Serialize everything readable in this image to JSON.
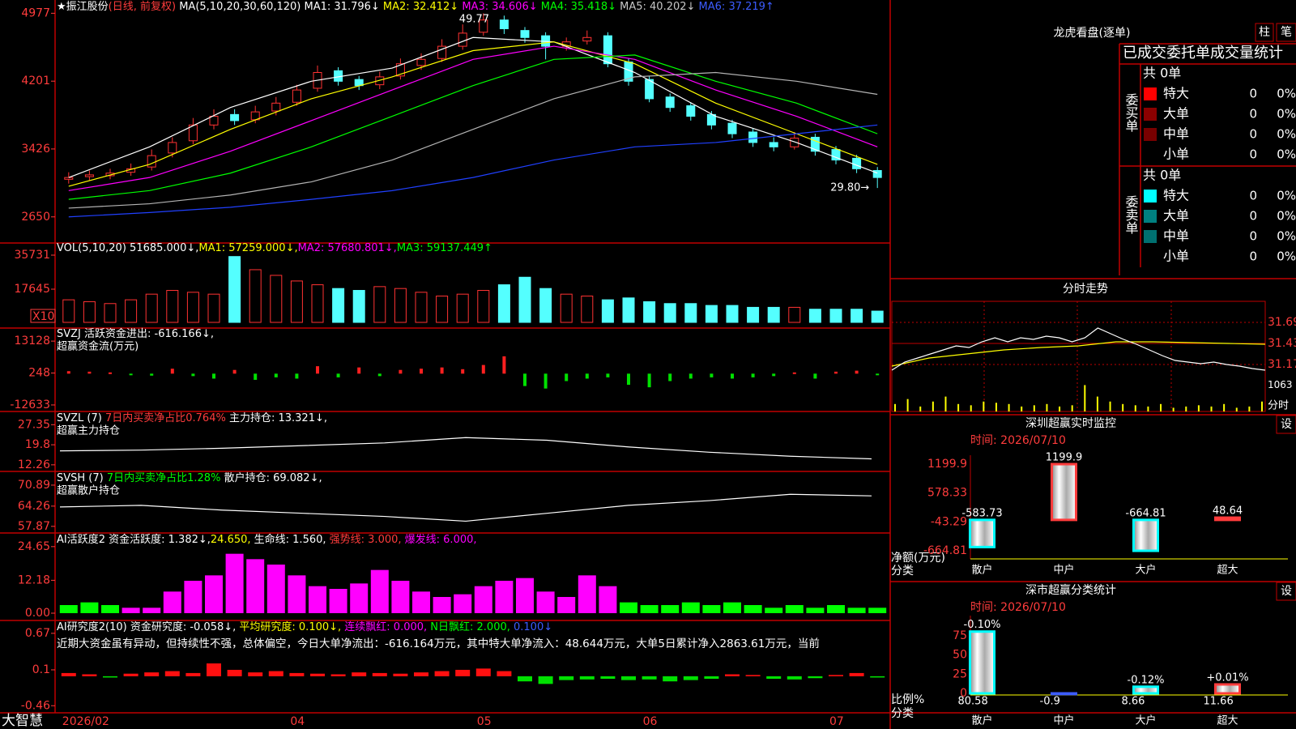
{
  "main": {
    "header": [
      {
        "text": "★振江股份",
        "color": "#ffffff"
      },
      {
        "text": "(日线, 前复权)",
        "color": "#ff3c3c"
      },
      {
        "text": " MA(5,10,20,30,60,120)",
        "color": "#ffffff"
      },
      {
        "text": " MA1: 31.796↓",
        "color": "#ffffff"
      },
      {
        "text": " MA2: 32.412↓",
        "color": "#ffff00"
      },
      {
        "text": " MA3: 34.606↓",
        "color": "#ff00ff"
      },
      {
        "text": " MA4: 35.418↓",
        "color": "#00ff00"
      },
      {
        "text": " MA5: 40.202↓",
        "color": "#c8c8c8"
      },
      {
        "text": " MA6: 37.219↑",
        "color": "#3c5cff"
      }
    ],
    "ylim": [
      2370,
      5110
    ],
    "yticks": [
      4977,
      4201,
      3426,
      2650
    ],
    "high_label": "49.77",
    "low_label": "29.80→",
    "categories": [
      "2026/02",
      null,
      null,
      null,
      null,
      null,
      null,
      null,
      null,
      null,
      null,
      "04",
      null,
      null,
      null,
      null,
      null,
      null,
      null,
      null,
      "05",
      null,
      null,
      null,
      null,
      null,
      null,
      null,
      "06",
      null,
      null,
      null,
      null,
      null,
      null,
      null,
      null,
      "07",
      null,
      null
    ],
    "open": [
      3080,
      3110,
      3120,
      3160,
      3220,
      3380,
      3520,
      3700,
      3820,
      3760,
      3860,
      3960,
      4120,
      4320,
      4220,
      4160,
      4260,
      4380,
      4460,
      4600,
      4760,
      4900,
      4780,
      4720,
      4600,
      4660,
      4720,
      4420,
      4220,
      4020,
      3920,
      3820,
      3720,
      3620,
      3500,
      3450,
      3560,
      3420,
      3320,
      3180
    ],
    "high": [
      3160,
      3180,
      3200,
      3260,
      3420,
      3560,
      3780,
      3880,
      3880,
      3920,
      4020,
      4160,
      4380,
      4360,
      4260,
      4310,
      4460,
      4520,
      4680,
      4850,
      4977,
      4950,
      4820,
      4760,
      4700,
      4780,
      4760,
      4460,
      4260,
      4060,
      3960,
      3860,
      3760,
      3660,
      3560,
      3620,
      3600,
      3460,
      3360,
      3220
    ],
    "low": [
      3030,
      3070,
      3080,
      3120,
      3180,
      3330,
      3480,
      3650,
      3700,
      3720,
      3810,
      3920,
      4080,
      4150,
      4100,
      4110,
      4220,
      4330,
      4420,
      4560,
      4720,
      4740,
      4640,
      4450,
      4550,
      4620,
      4360,
      4150,
      3960,
      3850,
      3750,
      3650,
      3550,
      3450,
      3400,
      3420,
      3350,
      3250,
      3150,
      2980
    ],
    "close": [
      3100,
      3130,
      3150,
      3200,
      3350,
      3500,
      3700,
      3800,
      3750,
      3850,
      3950,
      4100,
      4300,
      4200,
      4150,
      4250,
      4400,
      4450,
      4600,
      4750,
      4900,
      4800,
      4700,
      4600,
      4650,
      4700,
      4400,
      4200,
      4000,
      3900,
      3800,
      3700,
      3600,
      3500,
      3450,
      3550,
      3400,
      3300,
      3200,
      3100
    ],
    "ma_lines": [
      {
        "color": "#ffffff",
        "values": [
          3100,
          3450,
          3900,
          4200,
          4350,
          4700,
          4650,
          4300,
          3800,
          3500,
          3150
        ]
      },
      {
        "color": "#ffff00",
        "values": [
          3000,
          3250,
          3650,
          4000,
          4250,
          4550,
          4650,
          4400,
          3950,
          3600,
          3250
        ]
      },
      {
        "color": "#ff00ff",
        "values": [
          2950,
          3100,
          3400,
          3750,
          4100,
          4450,
          4600,
          4450,
          4100,
          3800,
          3450
        ]
      },
      {
        "color": "#00ff00",
        "values": [
          2850,
          2950,
          3150,
          3450,
          3800,
          4150,
          4450,
          4500,
          4200,
          3950,
          3600
        ]
      },
      {
        "color": "#b4b4b4",
        "values": [
          2750,
          2800,
          2900,
          3050,
          3300,
          3650,
          4000,
          4250,
          4300,
          4200,
          4050
        ]
      },
      {
        "color": "#2040ff",
        "values": [
          2650,
          2700,
          2760,
          2850,
          2950,
          3100,
          3300,
          3450,
          3500,
          3600,
          3700
        ]
      }
    ]
  },
  "vol": {
    "header": [
      {
        "text": "VOL(5,10,20) ",
        "color": "#ffffff"
      },
      {
        "text": "51685.000↓,",
        "color": "#ffffff"
      },
      {
        "text": "MA1: 57259.000↓,",
        "color": "#ffff00"
      },
      {
        "text": "MA2: 57680.801↓,",
        "color": "#ff00ff"
      },
      {
        "text": "MA3: 59137.449↑",
        "color": "#00ff00"
      }
    ],
    "unit": "X10",
    "ylim": [
      0,
      41330
    ],
    "yticks": [
      35731,
      17645
    ],
    "values": [
      12000,
      11000,
      10000,
      12000,
      15000,
      17000,
      16000,
      15000,
      35000,
      28000,
      25000,
      22000,
      20000,
      18000,
      17000,
      19000,
      18000,
      16000,
      14000,
      15000,
      17000,
      20000,
      24000,
      18000,
      15000,
      14000,
      12000,
      13000,
      11000,
      10000,
      10000,
      9000,
      9000,
      8000,
      8000,
      8000,
      7000,
      7000,
      7000,
      6000
    ]
  },
  "svzj": {
    "header": [
      {
        "text": "SVZJ  活跃资金进出: -616.166↓,",
        "color": "#ffffff"
      }
    ],
    "subtitle": "超赢资金流(万元)",
    "ylim": [
      -14283,
      17418
    ],
    "yticks": [
      13128,
      248,
      -12633
    ],
    "values": [
      1000,
      800,
      500,
      -500,
      -800,
      2000,
      -1000,
      -2000,
      1500,
      -2500,
      -1500,
      -2000,
      3000,
      -1500,
      2500,
      -1000,
      1500,
      2000,
      2500,
      1800,
      3500,
      7000,
      -5000,
      -6000,
      -3000,
      -2000,
      -1500,
      -4500,
      -5500,
      -3000,
      -2000,
      -1500,
      -2000,
      -1500,
      -1000,
      500,
      -2000,
      800,
      1200,
      -500
    ]
  },
  "svzl": {
    "header": [
      {
        "text": "SVZL (7) ",
        "color": "#ffffff"
      },
      {
        "text": "7日内买卖净占比0.764%",
        "color": "#ff3c3c"
      },
      {
        "text": " 主力持仓: 13.321↓,",
        "color": "#ffffff"
      }
    ],
    "subtitle": "超赢主力持仓",
    "ylim": [
      11.0,
      31.1
    ],
    "yticks": [
      27.35,
      19.8,
      12.26
    ],
    "values": [
      17.5,
      17.8,
      18.5,
      19.5,
      20.5,
      22.5,
      21.5,
      19,
      17,
      15.5,
      14.5
    ]
  },
  "svsh": {
    "header": [
      {
        "text": "SVSH (7) ",
        "color": "#ffffff"
      },
      {
        "text": "7日内买卖净占比1.28%",
        "color": "#00ff00"
      },
      {
        "text": " 散户持仓: 69.082↓,",
        "color": "#ffffff"
      }
    ],
    "subtitle": "超赢散户持仓",
    "ylim": [
      56.8,
      74.2
    ],
    "yticks": [
      70.89,
      64.26,
      57.87
    ],
    "values": [
      64,
      64.5,
      63,
      62,
      61,
      59.5,
      62,
      64.5,
      66,
      68,
      67.5
    ]
  },
  "active": {
    "header": [
      {
        "text": "AI活跃度2 资金活跃度: 1.382↓,",
        "color": "#ffffff"
      },
      {
        "text": "24.650,",
        "color": "#ffff00"
      },
      {
        "text": " 生命线: 1.560,",
        "color": "#ffffff"
      },
      {
        "text": " 强势线: 3.000,",
        "color": "#ff3c3c"
      },
      {
        "text": " 爆发线: 6.000,",
        "color": "#ff00ff"
      }
    ],
    "ylim": [
      0,
      28.5
    ],
    "yticks": [
      24.65,
      12.18,
      {
        "value": 0,
        "label": "0.00"
      }
    ],
    "values": [
      3,
      4,
      3,
      2,
      2,
      8,
      12,
      14,
      22,
      20,
      18,
      14,
      10,
      9,
      11,
      16,
      12,
      8,
      6,
      7,
      10,
      12,
      13,
      8,
      6,
      14,
      10,
      4,
      3,
      3,
      4,
      3,
      4,
      3,
      2,
      3,
      2,
      3,
      2,
      2
    ],
    "colors": [
      "#00ff00",
      "#00ff00",
      "#00ff00",
      "#ff00ff",
      "#ff00ff",
      "#ff00ff",
      "#ff00ff",
      "#ff00ff",
      "#ff00ff",
      "#ff00ff",
      "#ff00ff",
      "#ff00ff",
      "#ff00ff",
      "#ff00ff",
      "#ff00ff",
      "#ff00ff",
      "#ff00ff",
      "#ff00ff",
      "#ff00ff",
      "#ff00ff",
      "#ff00ff",
      "#ff00ff",
      "#ff00ff",
      "#ff00ff",
      "#ff00ff",
      "#ff00ff",
      "#ff00ff",
      "#00ff00",
      "#00ff00",
      "#00ff00",
      "#00ff00",
      "#00ff00",
      "#00ff00",
      "#00ff00",
      "#00ff00",
      "#00ff00",
      "#00ff00",
      "#00ff00",
      "#00ff00",
      "#00ff00"
    ]
  },
  "research": {
    "header": [
      {
        "text": "AI研究度2(10) 资金研究度: -0.058↓,",
        "color": "#ffffff"
      },
      {
        "text": " 平均研究度: 0.100↓,",
        "color": "#ffff00"
      },
      {
        "text": " 连续飘红: 0.000,",
        "color": "#ff00ff"
      },
      {
        "text": " N日飘红: 2.000,",
        "color": "#00ff00"
      },
      {
        "text": " 0.100↓",
        "color": "#3c5cff"
      }
    ],
    "comment": "近期大资金虽有异动，但持续性不强，总体偏空，今日大单净流出：-616.164万元，其中特大单净流入：48.644万元，大单5日累计净入2863.61万元，当前",
    "ylim": [
      -0.52,
      0.82
    ],
    "yticks": [
      0.67,
      0.1,
      -0.46
    ],
    "values": [
      0.05,
      0.03,
      -0.02,
      0.04,
      0.06,
      0.08,
      0.05,
      0.2,
      0.1,
      0.06,
      0.08,
      0.05,
      0.04,
      0.03,
      0.06,
      0.05,
      0.04,
      0.06,
      0.08,
      0.1,
      0.12,
      0.08,
      -0.08,
      -0.12,
      -0.06,
      -0.05,
      -0.04,
      -0.06,
      -0.05,
      -0.08,
      -0.06,
      -0.04,
      0.03,
      0.02,
      -0.04,
      -0.05,
      -0.03,
      0.02,
      0.05,
      -0.02
    ]
  },
  "footer": {
    "brand": "大智慧"
  },
  "book": {
    "title": "龙虎看盘(逐单)",
    "buttons": [
      "柱",
      "笔"
    ],
    "heading": "已成交委托单成交量统计",
    "sections": [
      {
        "label": "委买单",
        "total": "共 0单",
        "rows": [
          {
            "name": "特大",
            "color": "#ff0000",
            "count": 0,
            "pct": "0%"
          },
          {
            "name": "大单",
            "color": "#8b0000",
            "count": 0,
            "pct": "0%"
          },
          {
            "name": "中单",
            "color": "#780000",
            "count": 0,
            "pct": "0%"
          },
          {
            "name": "小单",
            "color": null,
            "count": 0,
            "pct": "0%"
          }
        ]
      },
      {
        "label": "委卖单",
        "total": "共 0单",
        "rows": [
          {
            "name": "特大",
            "color": "#00ffff",
            "count": 0,
            "pct": "0%"
          },
          {
            "name": "大单",
            "color": "#008080",
            "count": 0,
            "pct": "0%"
          },
          {
            "name": "中单",
            "color": "#007070",
            "count": 0,
            "pct": "0%"
          },
          {
            "name": "小单",
            "color": null,
            "count": 0,
            "pct": "0%"
          }
        ]
      }
    ]
  },
  "intraday": {
    "title": "分时走势",
    "ylim": [
      31.07,
      31.95
    ],
    "yticks": [
      31.69,
      31.43,
      31.17
    ],
    "price": [
      31.1,
      31.2,
      31.25,
      31.3,
      31.35,
      31.4,
      31.38,
      31.45,
      31.5,
      31.45,
      31.5,
      31.48,
      31.52,
      31.5,
      31.45,
      31.5,
      31.62,
      31.55,
      31.48,
      31.42,
      31.35,
      31.28,
      31.22,
      31.2,
      31.18,
      31.2,
      31.17,
      31.15,
      31.12,
      31.1
    ],
    "average": [
      31.15,
      31.25,
      31.3,
      31.35,
      31.38,
      31.4,
      31.45,
      31.45,
      31.44,
      31.43,
      31.42
    ],
    "volume_ylim": [
      0,
      1500
    ],
    "volume_yticks": [
      1063
    ],
    "volume_label": "分时",
    "volume": [
      300,
      500,
      200,
      400,
      600,
      300,
      250,
      400,
      350,
      300,
      200,
      250,
      300,
      200,
      250,
      1063,
      600,
      400,
      300,
      250,
      200,
      300,
      150,
      200,
      250,
      200,
      300,
      150,
      200,
      400
    ]
  },
  "monitor": {
    "title": "深圳超赢实时监控",
    "button": "设",
    "time": "时间: 2026/07/10",
    "ylim": [
      -839,
      1392
    ],
    "yticks": [
      1199.9,
      578.33,
      -43.29,
      -664.81
    ],
    "axis_label": "净额(万元)",
    "category_label": "分类",
    "categories": [
      "散户",
      "中户",
      "大户",
      "超大"
    ],
    "category_colors": [
      "#00ffff",
      "#ff3c3c",
      "#00ffff",
      "#ff3c3c"
    ],
    "values": [
      -583.73,
      1199.9,
      -664.81,
      48.64
    ]
  },
  "classify": {
    "title": "深市超赢分类统计",
    "button": "设",
    "time": "时间: 2026/07/10",
    "ylim": [
      -2.1,
      101.4
    ],
    "yticks": [
      75,
      50,
      25,
      0
    ],
    "axis_label": "比例%",
    "category_label": "分类",
    "categories": [
      "散户",
      "中户",
      "大户",
      "超大"
    ],
    "category_colors": [
      "#00ffff",
      "#3c5cff",
      "#00ffff",
      "#ff3c3c"
    ],
    "values": [
      80.58,
      -0.9,
      8.66,
      11.66
    ],
    "change_labels": [
      "-0.10%",
      null,
      "-0.12%",
      "+0.01%"
    ]
  }
}
